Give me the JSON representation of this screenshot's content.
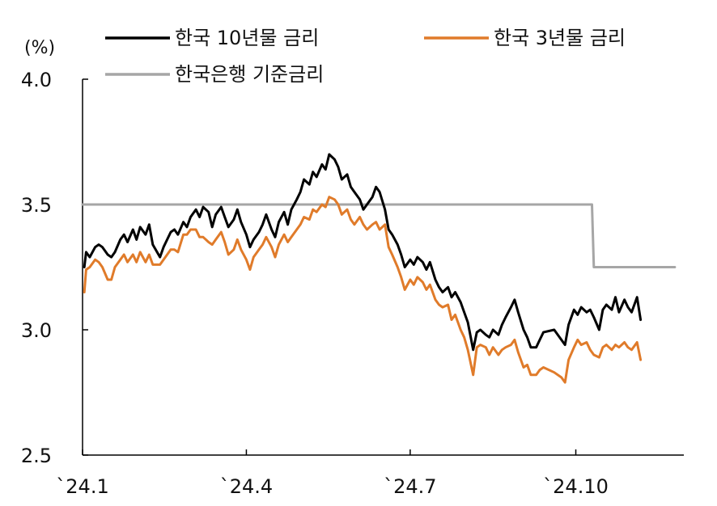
{
  "chart_data": {
    "type": "line",
    "ylabel": "(%)",
    "ylim": [
      2.5,
      4.0
    ],
    "yticks": [
      "4.0",
      "3.5",
      "3.0",
      "2.5"
    ],
    "ytick_values": [
      4.0,
      3.5,
      3.0,
      2.5
    ],
    "xlim": [
      "2024-01-01",
      "2024-11-30"
    ],
    "xticks": [
      "`24.1",
      "`24.4",
      "`24.7",
      "`24.10"
    ],
    "xtick_dates": [
      "2024-01-01",
      "2024-04-01",
      "2024-07-01",
      "2024-10-01"
    ],
    "grid": false,
    "legend_position": "top",
    "series": [
      {
        "name": "한국 10년물 금리",
        "color": "#000000",
        "points": [
          [
            "2024-01-02",
            3.25
          ],
          [
            "2024-01-03",
            3.31
          ],
          [
            "2024-01-05",
            3.29
          ],
          [
            "2024-01-08",
            3.33
          ],
          [
            "2024-01-10",
            3.34
          ],
          [
            "2024-01-12",
            3.33
          ],
          [
            "2024-01-15",
            3.3
          ],
          [
            "2024-01-17",
            3.29
          ],
          [
            "2024-01-19",
            3.31
          ],
          [
            "2024-01-22",
            3.36
          ],
          [
            "2024-01-24",
            3.38
          ],
          [
            "2024-01-26",
            3.35
          ],
          [
            "2024-01-29",
            3.4
          ],
          [
            "2024-01-31",
            3.36
          ],
          [
            "2024-02-02",
            3.41
          ],
          [
            "2024-02-05",
            3.38
          ],
          [
            "2024-02-07",
            3.42
          ],
          [
            "2024-02-09",
            3.34
          ],
          [
            "2024-02-13",
            3.29
          ],
          [
            "2024-02-15",
            3.33
          ],
          [
            "2024-02-19",
            3.39
          ],
          [
            "2024-02-21",
            3.4
          ],
          [
            "2024-02-23",
            3.38
          ],
          [
            "2024-02-26",
            3.43
          ],
          [
            "2024-02-28",
            3.41
          ],
          [
            "2024-03-01",
            3.45
          ],
          [
            "2024-03-04",
            3.48
          ],
          [
            "2024-03-06",
            3.45
          ],
          [
            "2024-03-08",
            3.49
          ],
          [
            "2024-03-11",
            3.47
          ],
          [
            "2024-03-13",
            3.41
          ],
          [
            "2024-03-15",
            3.46
          ],
          [
            "2024-03-18",
            3.49
          ],
          [
            "2024-03-20",
            3.45
          ],
          [
            "2024-03-22",
            3.41
          ],
          [
            "2024-03-25",
            3.44
          ],
          [
            "2024-03-27",
            3.48
          ],
          [
            "2024-03-29",
            3.43
          ],
          [
            "2024-04-01",
            3.38
          ],
          [
            "2024-04-03",
            3.33
          ],
          [
            "2024-04-05",
            3.36
          ],
          [
            "2024-04-08",
            3.39
          ],
          [
            "2024-04-10",
            3.42
          ],
          [
            "2024-04-12",
            3.46
          ],
          [
            "2024-04-15",
            3.4
          ],
          [
            "2024-04-17",
            3.37
          ],
          [
            "2024-04-19",
            3.43
          ],
          [
            "2024-04-22",
            3.47
          ],
          [
            "2024-04-24",
            3.42
          ],
          [
            "2024-04-26",
            3.48
          ],
          [
            "2024-04-29",
            3.52
          ],
          [
            "2024-05-01",
            3.55
          ],
          [
            "2024-05-03",
            3.6
          ],
          [
            "2024-05-06",
            3.58
          ],
          [
            "2024-05-08",
            3.63
          ],
          [
            "2024-05-10",
            3.61
          ],
          [
            "2024-05-13",
            3.66
          ],
          [
            "2024-05-15",
            3.64
          ],
          [
            "2024-05-17",
            3.7
          ],
          [
            "2024-05-20",
            3.68
          ],
          [
            "2024-05-22",
            3.65
          ],
          [
            "2024-05-24",
            3.6
          ],
          [
            "2024-05-27",
            3.62
          ],
          [
            "2024-05-29",
            3.57
          ],
          [
            "2024-05-31",
            3.55
          ],
          [
            "2024-06-03",
            3.52
          ],
          [
            "2024-06-05",
            3.48
          ],
          [
            "2024-06-07",
            3.5
          ],
          [
            "2024-06-10",
            3.53
          ],
          [
            "2024-06-12",
            3.57
          ],
          [
            "2024-06-14",
            3.55
          ],
          [
            "2024-06-17",
            3.48
          ],
          [
            "2024-06-19",
            3.4
          ],
          [
            "2024-06-21",
            3.38
          ],
          [
            "2024-06-24",
            3.34
          ],
          [
            "2024-06-26",
            3.3
          ],
          [
            "2024-06-28",
            3.25
          ],
          [
            "2024-07-01",
            3.28
          ],
          [
            "2024-07-03",
            3.26
          ],
          [
            "2024-07-05",
            3.29
          ],
          [
            "2024-07-08",
            3.27
          ],
          [
            "2024-07-10",
            3.24
          ],
          [
            "2024-07-12",
            3.27
          ],
          [
            "2024-07-15",
            3.2
          ],
          [
            "2024-07-17",
            3.17
          ],
          [
            "2024-07-19",
            3.15
          ],
          [
            "2024-07-22",
            3.17
          ],
          [
            "2024-07-24",
            3.13
          ],
          [
            "2024-07-26",
            3.15
          ],
          [
            "2024-07-29",
            3.11
          ],
          [
            "2024-07-31",
            3.07
          ],
          [
            "2024-08-02",
            3.03
          ],
          [
            "2024-08-05",
            2.92
          ],
          [
            "2024-08-07",
            2.99
          ],
          [
            "2024-08-09",
            3.0
          ],
          [
            "2024-08-12",
            2.98
          ],
          [
            "2024-08-14",
            2.97
          ],
          [
            "2024-08-16",
            3.0
          ],
          [
            "2024-08-19",
            2.98
          ],
          [
            "2024-08-21",
            3.02
          ],
          [
            "2024-08-23",
            3.05
          ],
          [
            "2024-08-26",
            3.09
          ],
          [
            "2024-08-28",
            3.12
          ],
          [
            "2024-08-30",
            3.07
          ],
          [
            "2024-09-02",
            3.0
          ],
          [
            "2024-09-04",
            2.97
          ],
          [
            "2024-09-06",
            2.93
          ],
          [
            "2024-09-09",
            2.93
          ],
          [
            "2024-09-11",
            2.96
          ],
          [
            "2024-09-13",
            2.99
          ],
          [
            "2024-09-19",
            3.0
          ],
          [
            "2024-09-23",
            2.96
          ],
          [
            "2024-09-25",
            2.94
          ],
          [
            "2024-09-27",
            3.02
          ],
          [
            "2024-09-30",
            3.08
          ],
          [
            "2024-10-02",
            3.06
          ],
          [
            "2024-10-04",
            3.09
          ],
          [
            "2024-10-07",
            3.07
          ],
          [
            "2024-10-09",
            3.08
          ],
          [
            "2024-10-11",
            3.05
          ],
          [
            "2024-10-14",
            3.0
          ],
          [
            "2024-10-16",
            3.08
          ],
          [
            "2024-10-18",
            3.1
          ],
          [
            "2024-10-21",
            3.08
          ],
          [
            "2024-10-23",
            3.13
          ],
          [
            "2024-10-25",
            3.07
          ],
          [
            "2024-10-28",
            3.12
          ],
          [
            "2024-10-30",
            3.09
          ],
          [
            "2024-11-01",
            3.07
          ],
          [
            "2024-11-04",
            3.13
          ],
          [
            "2024-11-06",
            3.04
          ]
        ]
      },
      {
        "name": "한국 3년물 금리",
        "color": "#e07b2a",
        "points": [
          [
            "2024-01-02",
            3.15
          ],
          [
            "2024-01-03",
            3.24
          ],
          [
            "2024-01-05",
            3.25
          ],
          [
            "2024-01-08",
            3.28
          ],
          [
            "2024-01-10",
            3.27
          ],
          [
            "2024-01-12",
            3.25
          ],
          [
            "2024-01-15",
            3.2
          ],
          [
            "2024-01-17",
            3.2
          ],
          [
            "2024-01-19",
            3.25
          ],
          [
            "2024-01-22",
            3.28
          ],
          [
            "2024-01-24",
            3.3
          ],
          [
            "2024-01-26",
            3.27
          ],
          [
            "2024-01-29",
            3.3
          ],
          [
            "2024-01-31",
            3.27
          ],
          [
            "2024-02-02",
            3.31
          ],
          [
            "2024-02-05",
            3.27
          ],
          [
            "2024-02-07",
            3.3
          ],
          [
            "2024-02-09",
            3.26
          ],
          [
            "2024-02-13",
            3.26
          ],
          [
            "2024-02-15",
            3.28
          ],
          [
            "2024-02-19",
            3.32
          ],
          [
            "2024-02-21",
            3.32
          ],
          [
            "2024-02-23",
            3.31
          ],
          [
            "2024-02-26",
            3.38
          ],
          [
            "2024-02-28",
            3.38
          ],
          [
            "2024-03-01",
            3.4
          ],
          [
            "2024-03-04",
            3.4
          ],
          [
            "2024-03-06",
            3.37
          ],
          [
            "2024-03-08",
            3.37
          ],
          [
            "2024-03-11",
            3.35
          ],
          [
            "2024-03-13",
            3.34
          ],
          [
            "2024-03-15",
            3.36
          ],
          [
            "2024-03-18",
            3.39
          ],
          [
            "2024-03-20",
            3.35
          ],
          [
            "2024-03-22",
            3.3
          ],
          [
            "2024-03-25",
            3.32
          ],
          [
            "2024-03-27",
            3.36
          ],
          [
            "2024-03-29",
            3.32
          ],
          [
            "2024-04-01",
            3.28
          ],
          [
            "2024-04-03",
            3.24
          ],
          [
            "2024-04-05",
            3.29
          ],
          [
            "2024-04-08",
            3.32
          ],
          [
            "2024-04-10",
            3.34
          ],
          [
            "2024-04-12",
            3.37
          ],
          [
            "2024-04-15",
            3.33
          ],
          [
            "2024-04-17",
            3.29
          ],
          [
            "2024-04-19",
            3.34
          ],
          [
            "2024-04-22",
            3.38
          ],
          [
            "2024-04-24",
            3.35
          ],
          [
            "2024-04-26",
            3.37
          ],
          [
            "2024-04-29",
            3.4
          ],
          [
            "2024-05-01",
            3.42
          ],
          [
            "2024-05-03",
            3.45
          ],
          [
            "2024-05-06",
            3.44
          ],
          [
            "2024-05-08",
            3.48
          ],
          [
            "2024-05-10",
            3.47
          ],
          [
            "2024-05-13",
            3.5
          ],
          [
            "2024-05-15",
            3.49
          ],
          [
            "2024-05-17",
            3.53
          ],
          [
            "2024-05-20",
            3.52
          ],
          [
            "2024-05-22",
            3.5
          ],
          [
            "2024-05-24",
            3.46
          ],
          [
            "2024-05-27",
            3.48
          ],
          [
            "2024-05-29",
            3.44
          ],
          [
            "2024-05-31",
            3.42
          ],
          [
            "2024-06-03",
            3.45
          ],
          [
            "2024-06-05",
            3.42
          ],
          [
            "2024-06-07",
            3.4
          ],
          [
            "2024-06-10",
            3.42
          ],
          [
            "2024-06-12",
            3.43
          ],
          [
            "2024-06-14",
            3.4
          ],
          [
            "2024-06-17",
            3.42
          ],
          [
            "2024-06-19",
            3.33
          ],
          [
            "2024-06-21",
            3.3
          ],
          [
            "2024-06-24",
            3.25
          ],
          [
            "2024-06-26",
            3.21
          ],
          [
            "2024-06-28",
            3.16
          ],
          [
            "2024-07-01",
            3.2
          ],
          [
            "2024-07-03",
            3.18
          ],
          [
            "2024-07-05",
            3.21
          ],
          [
            "2024-07-08",
            3.19
          ],
          [
            "2024-07-10",
            3.16
          ],
          [
            "2024-07-12",
            3.18
          ],
          [
            "2024-07-15",
            3.12
          ],
          [
            "2024-07-17",
            3.1
          ],
          [
            "2024-07-19",
            3.09
          ],
          [
            "2024-07-22",
            3.1
          ],
          [
            "2024-07-24",
            3.04
          ],
          [
            "2024-07-26",
            3.06
          ],
          [
            "2024-07-29",
            3.0
          ],
          [
            "2024-07-31",
            2.97
          ],
          [
            "2024-08-02",
            2.92
          ],
          [
            "2024-08-05",
            2.82
          ],
          [
            "2024-08-07",
            2.93
          ],
          [
            "2024-08-09",
            2.94
          ],
          [
            "2024-08-12",
            2.93
          ],
          [
            "2024-08-14",
            2.9
          ],
          [
            "2024-08-16",
            2.93
          ],
          [
            "2024-08-19",
            2.9
          ],
          [
            "2024-08-21",
            2.92
          ],
          [
            "2024-08-23",
            2.93
          ],
          [
            "2024-08-26",
            2.94
          ],
          [
            "2024-08-28",
            2.96
          ],
          [
            "2024-08-30",
            2.91
          ],
          [
            "2024-09-02",
            2.85
          ],
          [
            "2024-09-04",
            2.86
          ],
          [
            "2024-09-06",
            2.82
          ],
          [
            "2024-09-09",
            2.82
          ],
          [
            "2024-09-11",
            2.84
          ],
          [
            "2024-09-13",
            2.85
          ],
          [
            "2024-09-19",
            2.83
          ],
          [
            "2024-09-23",
            2.81
          ],
          [
            "2024-09-25",
            2.79
          ],
          [
            "2024-09-27",
            2.88
          ],
          [
            "2024-09-30",
            2.93
          ],
          [
            "2024-10-02",
            2.96
          ],
          [
            "2024-10-04",
            2.94
          ],
          [
            "2024-10-07",
            2.95
          ],
          [
            "2024-10-09",
            2.92
          ],
          [
            "2024-10-11",
            2.9
          ],
          [
            "2024-10-14",
            2.89
          ],
          [
            "2024-10-16",
            2.93
          ],
          [
            "2024-10-18",
            2.94
          ],
          [
            "2024-10-21",
            2.92
          ],
          [
            "2024-10-23",
            2.94
          ],
          [
            "2024-10-25",
            2.93
          ],
          [
            "2024-10-28",
            2.95
          ],
          [
            "2024-10-30",
            2.93
          ],
          [
            "2024-11-01",
            2.92
          ],
          [
            "2024-11-04",
            2.95
          ],
          [
            "2024-11-06",
            2.88
          ]
        ]
      },
      {
        "name": "한국은행 기준금리",
        "color": "#a6a6a6",
        "points": [
          [
            "2024-01-01",
            3.5
          ],
          [
            "2024-10-10",
            3.5
          ],
          [
            "2024-10-11",
            3.25
          ],
          [
            "2024-11-25",
            3.25
          ]
        ]
      }
    ]
  }
}
